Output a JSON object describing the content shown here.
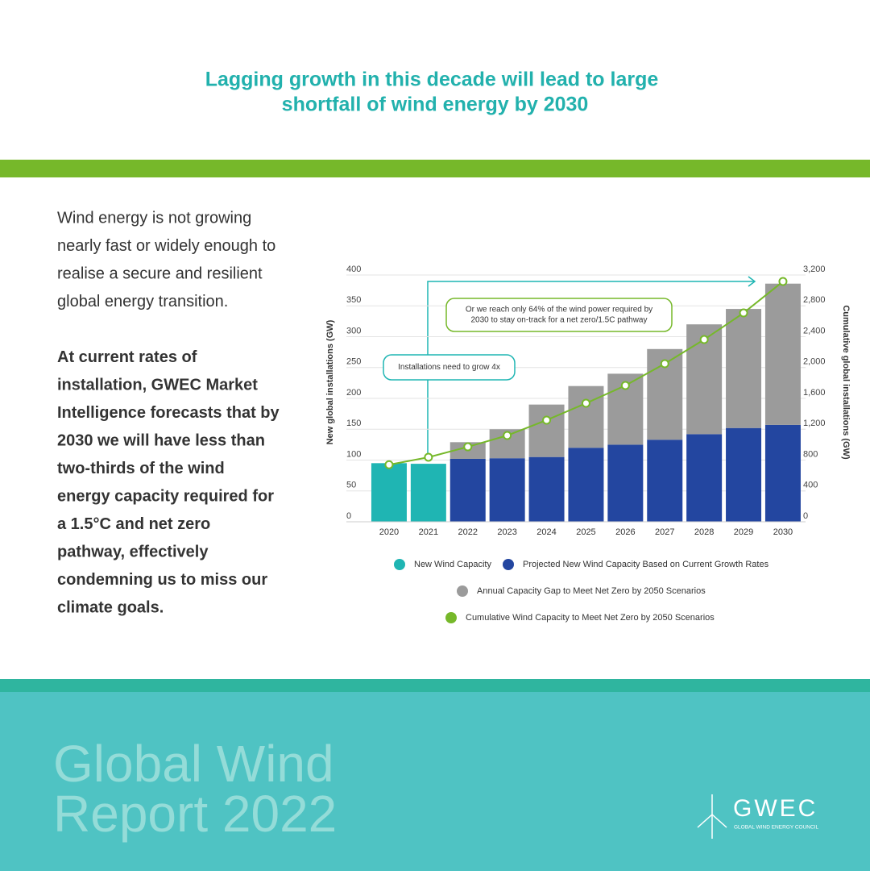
{
  "header": {
    "title": [
      "Lagging growth in this decade will lead to large",
      "shortfall of wind energy by 2030"
    ]
  },
  "body": {
    "paragraphs": [
      [
        "Wind energy is not growing",
        "nearly fast or widely enough to",
        "realise a secure and resilient",
        "global energy transition."
      ],
      [
        "At current rates of",
        "installation, GWEC Market",
        "Intelligence forecasts that by",
        "2030 we will have less than",
        "two-thirds of the wind",
        "energy capacity required for",
        "a 1.5°C and net zero",
        "pathway, effectively",
        "condemning us to miss our",
        "climate goals."
      ]
    ]
  },
  "chart_data": {
    "type": "bar",
    "stacked": true,
    "categories": [
      "2020",
      "2021",
      "2022",
      "2023",
      "2024",
      "2025",
      "2026",
      "2027",
      "2028",
      "2029",
      "2030"
    ],
    "series": [
      {
        "name": "New Wind Capacity",
        "color": "#1fb5b3",
        "values": [
          95,
          94,
          null,
          null,
          null,
          null,
          null,
          null,
          null,
          null,
          null
        ]
      },
      {
        "name": "Projected New Wind Capacity Based on Current Growth Rates",
        "color": "#2346a0",
        "values": [
          null,
          null,
          102,
          103,
          105,
          120,
          125,
          133,
          142,
          152,
          157
        ]
      },
      {
        "name": "Annual Capacity Gap to Meet Net Zero by 2050 Scenarios",
        "color": "#9b9b9b",
        "values": [
          null,
          null,
          27,
          47,
          85,
          100,
          115,
          147,
          178,
          193,
          229
        ]
      },
      {
        "name": "Cumulative Wind Capacity to Meet Net Zero by 2050 Scenarios",
        "color": "#76b82a",
        "type": "line",
        "axis": "y2",
        "values": [
          740,
          837,
          972,
          1119,
          1318,
          1537,
          1767,
          2050,
          2363,
          2708,
          3116
        ]
      }
    ],
    "ylabel": "New global installations (GW)",
    "y2label": "Cumulative global installations (GW)",
    "ylim": [
      0,
      400
    ],
    "yticks": [
      0,
      50,
      100,
      150,
      200,
      250,
      300,
      350,
      400
    ],
    "y2lim": [
      0,
      3200
    ],
    "y2ticks": [
      0,
      400,
      800,
      {
        "value": 1200,
        "label": "1,200"
      },
      {
        "value": 1600,
        "label": "1,600"
      },
      {
        "value": 2000,
        "label": "2,000"
      },
      {
        "value": 2400,
        "label": "2,400"
      },
      {
        "value": 2800,
        "label": "2,800"
      },
      {
        "value": 3200,
        "label": "3,200"
      }
    ],
    "grid": true,
    "annotations": [
      [
        "Installations need to grow 4x"
      ],
      [
        "Or we reach only 64% of the wind power required by",
        "2030 to stay on-track for a net zero/1.5C pathway"
      ]
    ]
  },
  "footer": {
    "report": [
      "Global Wind",
      "Report 2022"
    ],
    "logo": "GWEC",
    "logo_sub": "GLOBAL WIND ENERGY COUNCIL"
  }
}
